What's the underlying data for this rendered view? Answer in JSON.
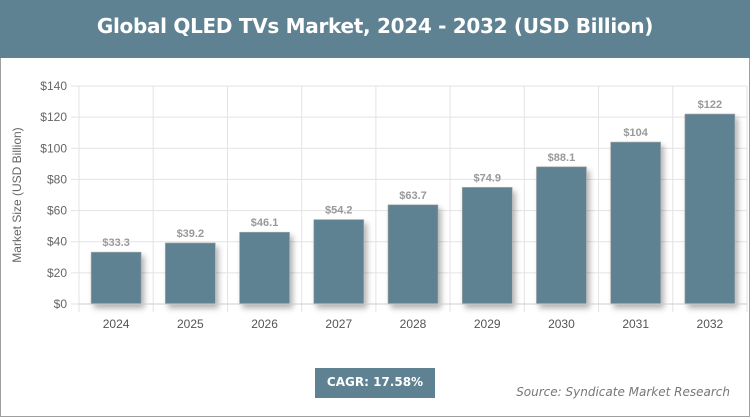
{
  "chart_data": {
    "type": "bar",
    "title": "Global QLED TVs Market, 2024 - 2032 (USD Billion)",
    "ylabel": "Market Size (USD Billion)",
    "xlabel": "",
    "categories": [
      "2024",
      "2025",
      "2026",
      "2027",
      "2028",
      "2029",
      "2030",
      "2031",
      "2032"
    ],
    "values": [
      33.3,
      39.2,
      46.1,
      54.2,
      63.7,
      74.9,
      88.1,
      104,
      122
    ],
    "data_labels": [
      "$33.3",
      "$39.2",
      "$46.1",
      "$54.2",
      "$63.7",
      "$74.9",
      "$88.1",
      "$104",
      "$122"
    ],
    "ylim": [
      0,
      140
    ],
    "yticks": [
      0,
      20,
      40,
      60,
      80,
      100,
      120,
      140
    ],
    "ytick_labels": [
      "$0",
      "$20",
      "$40",
      "$60",
      "$80",
      "$100",
      "$120",
      "$140"
    ],
    "grid": true,
    "bar_color": "#5f8292"
  },
  "cagr": "CAGR: 17.58%",
  "source": "Source: Syndicate Market Research"
}
